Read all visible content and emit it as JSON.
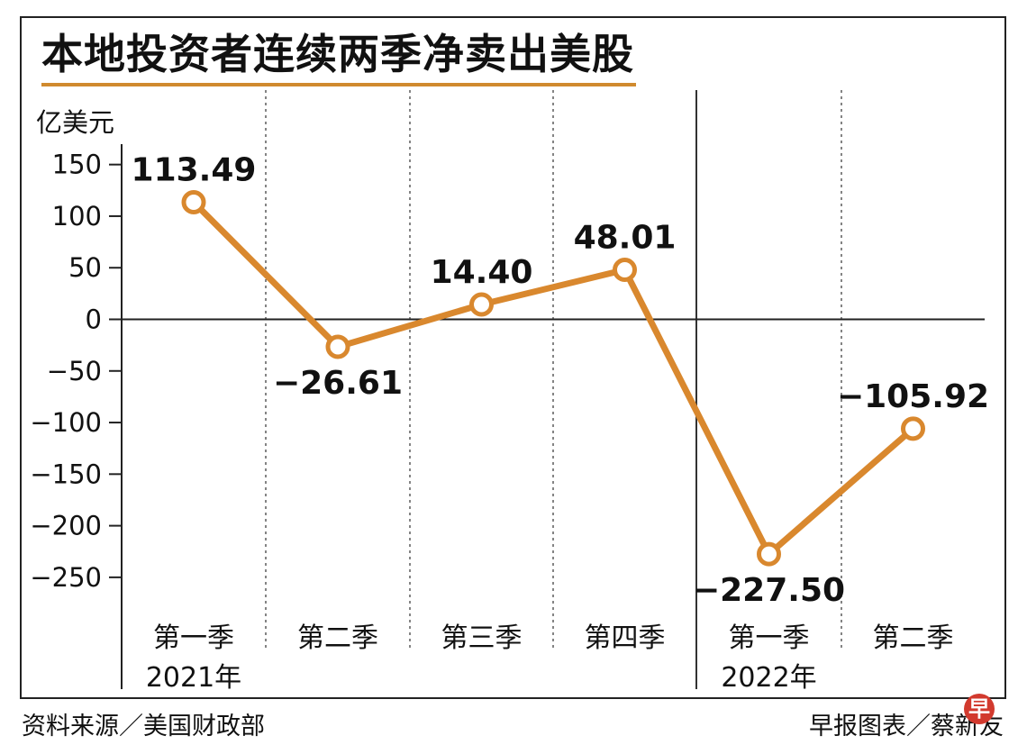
{
  "chart_data": {
    "type": "line",
    "title": "本地投资者连续两季净卖出美股",
    "ylabel": "亿美元",
    "ylim": [
      -290,
      175
    ],
    "yticks": [
      150,
      100,
      50,
      0,
      -50,
      -100,
      -150,
      -200,
      -250
    ],
    "ytick_labels": [
      "150",
      "100",
      "50",
      "0",
      "−50",
      "−100",
      "−150",
      "−200",
      "−250"
    ],
    "categories": [
      {
        "quarter": "第一季",
        "year": "2021年"
      },
      {
        "quarter": "第二季",
        "year": ""
      },
      {
        "quarter": "第三季",
        "year": ""
      },
      {
        "quarter": "第四季",
        "year": ""
      },
      {
        "quarter": "第一季",
        "year": "2022年"
      },
      {
        "quarter": "第二季",
        "year": ""
      }
    ],
    "values": [
      113.49,
      -26.61,
      14.4,
      48.01,
      -227.5,
      -105.92
    ],
    "data_labels": [
      "113.49",
      "−26.61",
      "14.40",
      "48.01",
      "−227.50",
      "−105.92"
    ],
    "line_color": "#d9882e"
  },
  "source": "资料来源／美国财政部",
  "credit": "早报图表／蔡新友",
  "logo_text": "早"
}
